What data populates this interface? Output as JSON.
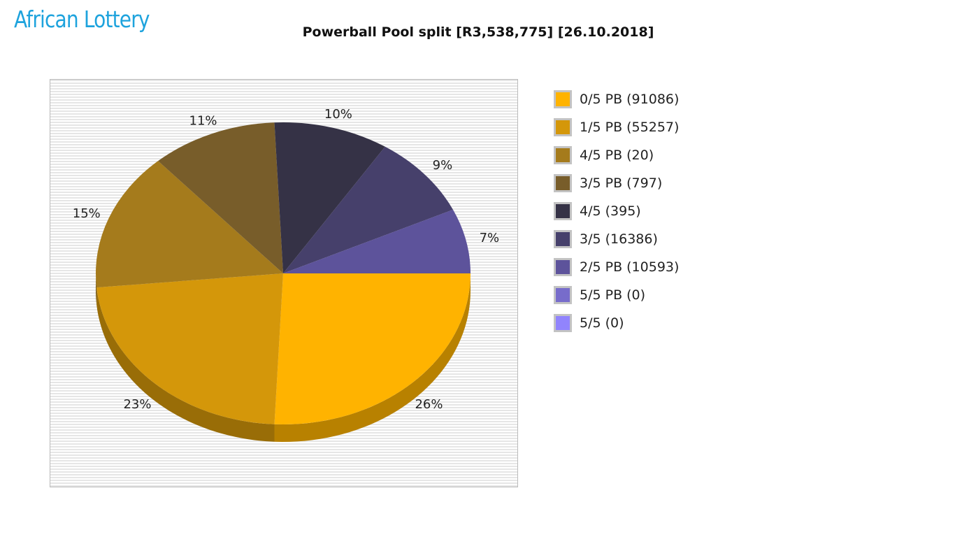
{
  "logo": {
    "text": "African Lottery"
  },
  "chart_data": {
    "type": "pie",
    "title": "Powerball Pool split [R3,538,775] [26.10.2018]",
    "style": "3d",
    "legend_position": "right",
    "slices": [
      {
        "legend": "0/5 PB (91086)",
        "percent": 26,
        "label": "26%",
        "color": "#ffb300"
      },
      {
        "legend": "1/5 PB (55257)",
        "percent": 23,
        "label": "23%",
        "color": "#d4970a"
      },
      {
        "legend": "4/5 PB (20)",
        "percent": 15,
        "label": "15%",
        "color": "#a57b1c"
      },
      {
        "legend": "3/5 PB (797)",
        "percent": 11,
        "label": "11%",
        "color": "#785d2a"
      },
      {
        "legend": "4/5 (395)",
        "percent": 10,
        "label": "10%",
        "color": "#353246"
      },
      {
        "legend": "3/5 (16386)",
        "percent": 9,
        "label": "9%",
        "color": "#46406b"
      },
      {
        "legend": "2/5 PB (10593)",
        "percent": 7,
        "label": "7%",
        "color": "#5d539b"
      },
      {
        "legend": "5/5 PB (0)",
        "percent": 0,
        "label": "",
        "color": "#776ccb"
      },
      {
        "legend": "5/5 (0)",
        "percent": 0,
        "label": "",
        "color": "#9184fd"
      }
    ]
  }
}
